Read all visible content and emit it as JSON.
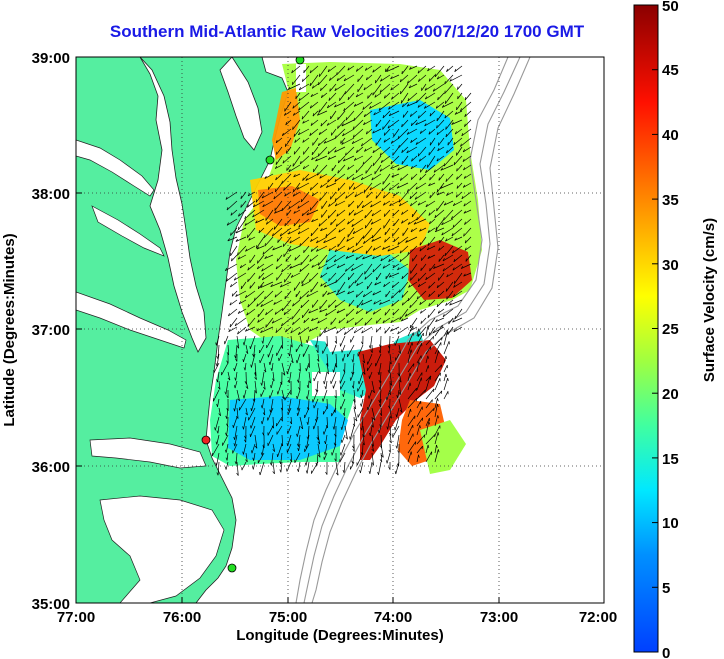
{
  "title": "Southern Mid-Atlantic Raw Velocities 2007/12/20 1700 GMT",
  "xlabel": "Longitude (Degrees:Minutes)",
  "ylabel": "Latitude (Degrees:Minutes)",
  "x_ticks": [
    "77:00",
    "76:00",
    "75:00",
    "74:00",
    "73:00",
    "72:00"
  ],
  "y_ticks": [
    "39:00",
    "38:00",
    "37:00",
    "36:00",
    "35:00"
  ],
  "colorbar": {
    "label": "Surface Velocity (cm/s)",
    "ticks": [
      "50",
      "45",
      "40",
      "35",
      "30",
      "25",
      "20",
      "15",
      "10",
      "5",
      "0"
    ],
    "min": 0,
    "max": 50
  },
  "colors": {
    "land": "#55eea0",
    "water": "#ffffff",
    "title": "#1a1ae6",
    "site_green": "#22dd22",
    "site_red": "#ee2222"
  }
}
